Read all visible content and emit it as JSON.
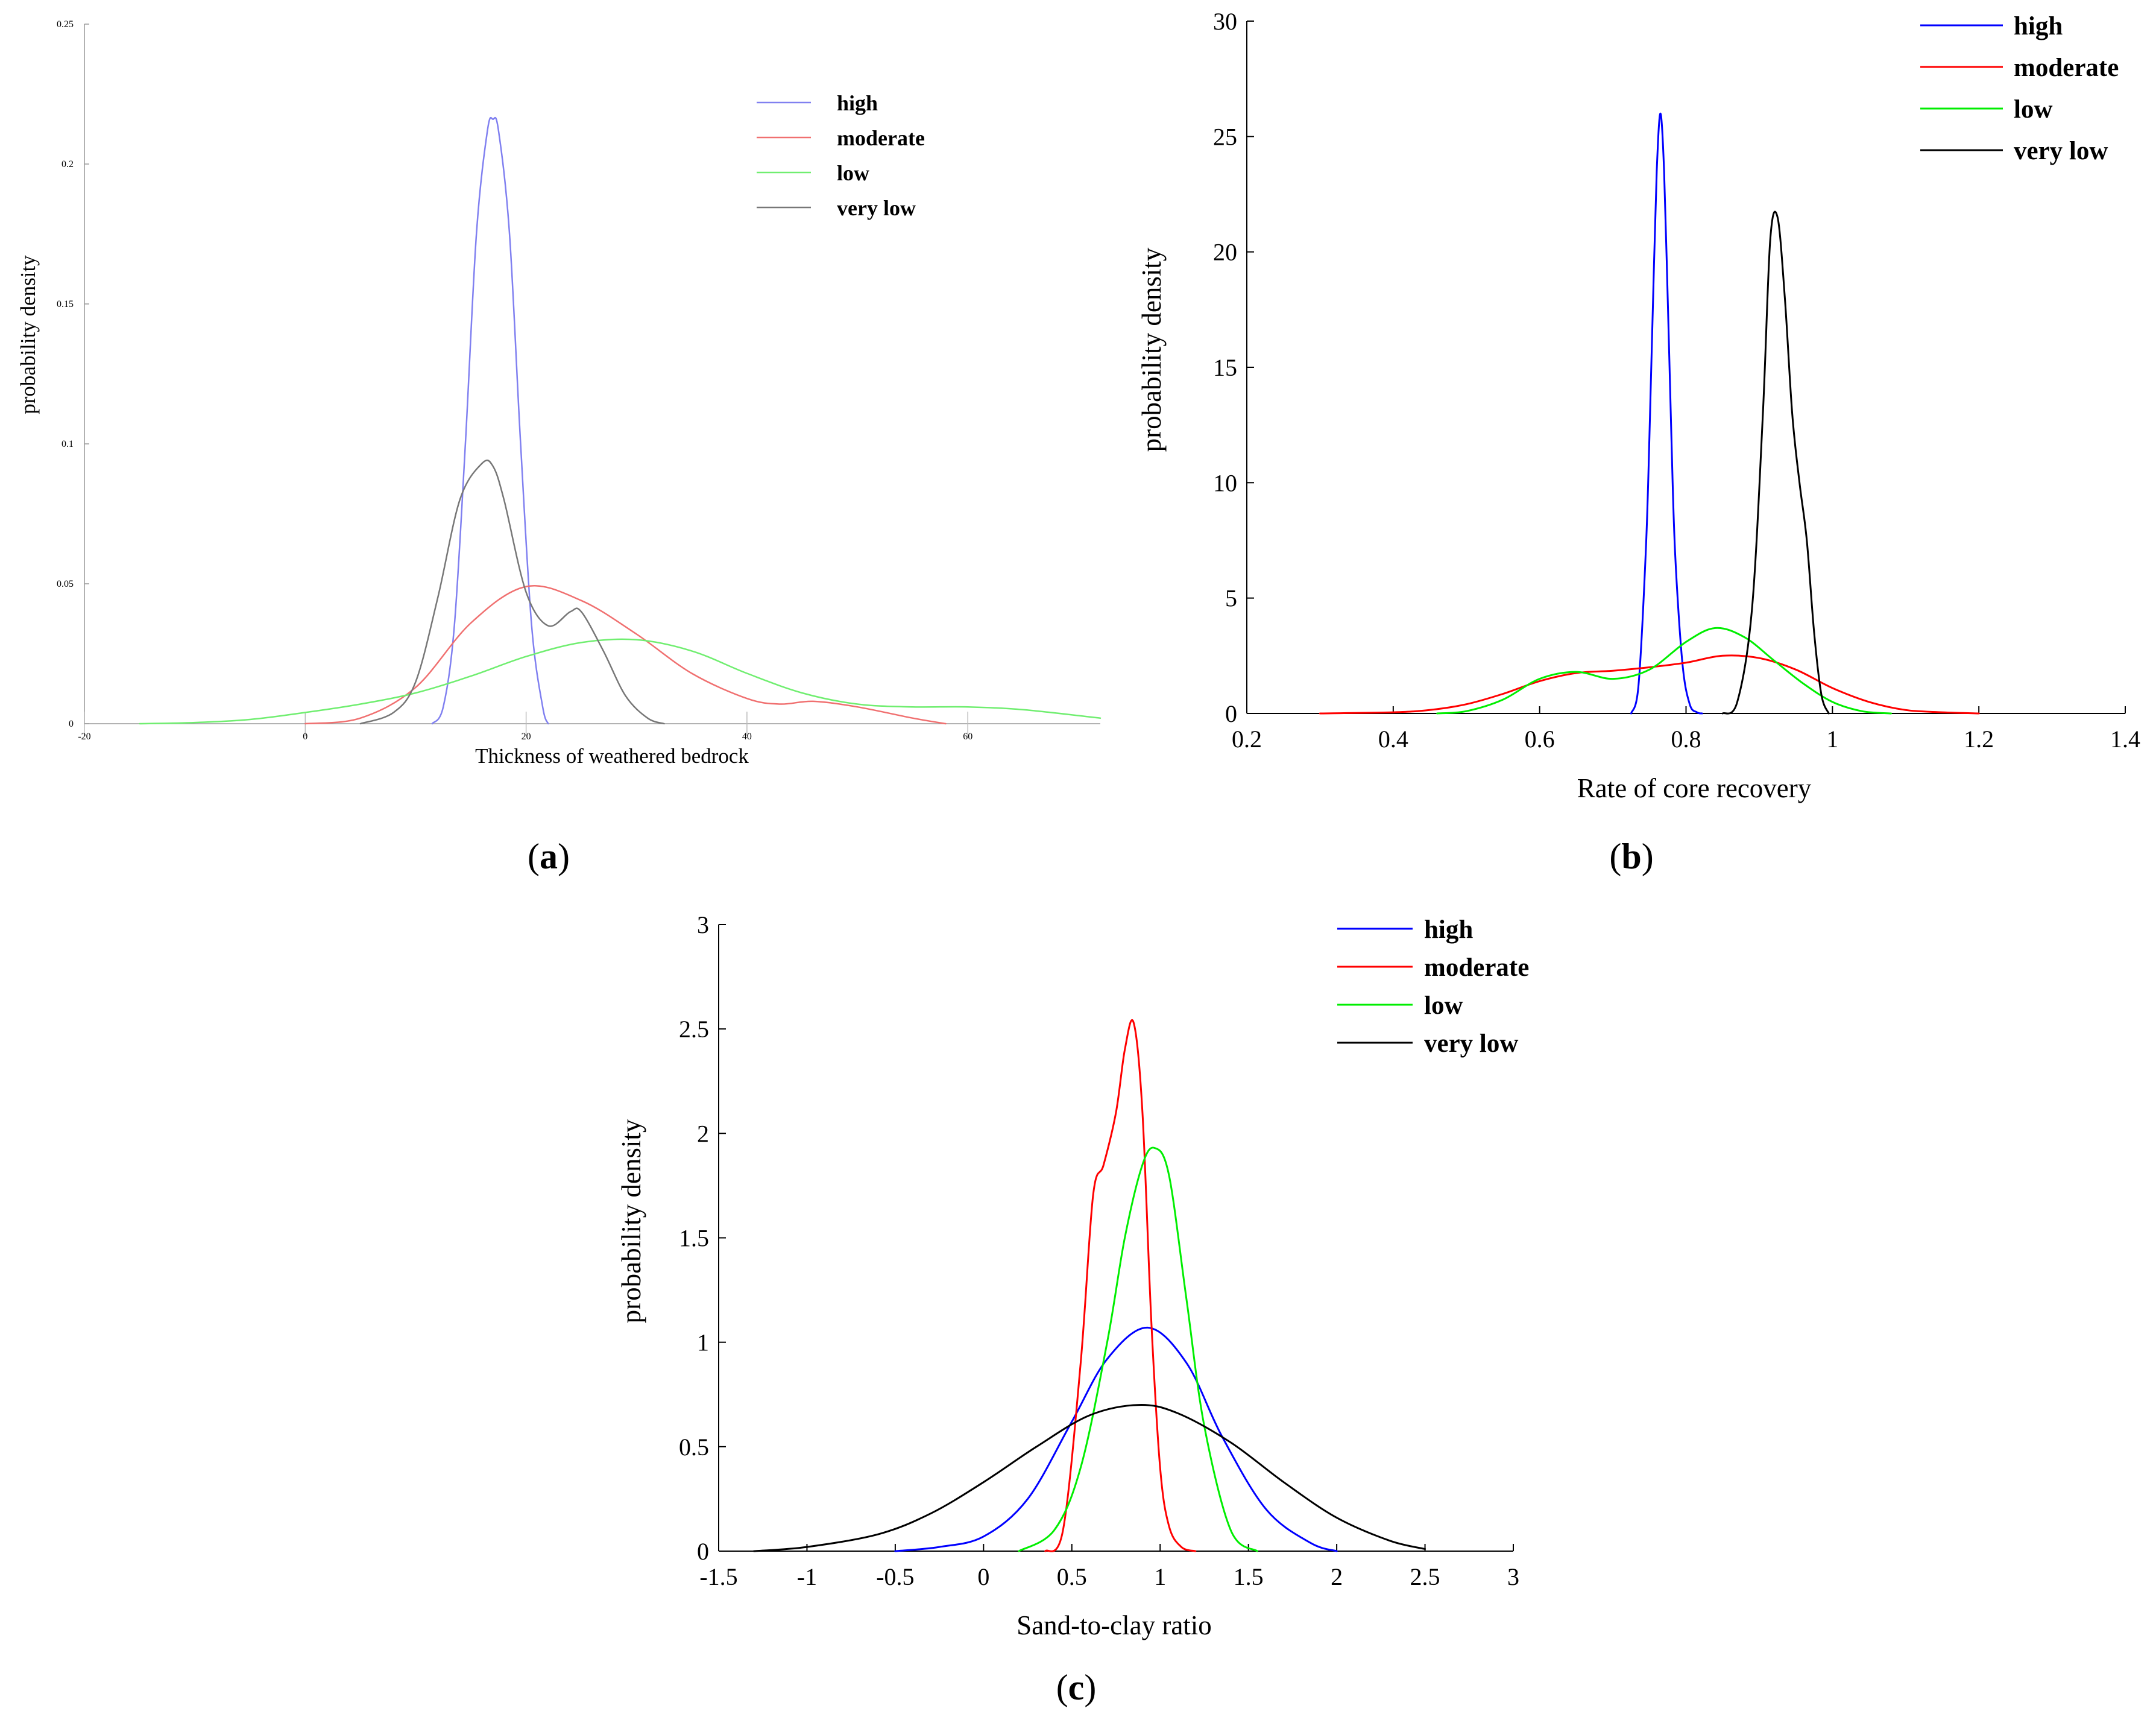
{
  "panels": [
    {
      "id": "a",
      "label_letter": "a",
      "chart_data": {
        "type": "line",
        "title": "",
        "xlabel": "Thickness of weathered bedrock",
        "ylabel": "probability density",
        "xlim": [
          -20,
          72
        ],
        "ylim": [
          0,
          0.25
        ],
        "xticks": [
          -20,
          0,
          20,
          40,
          60
        ],
        "xtick_labels": [
          "-20",
          "0",
          "20",
          "40",
          "60"
        ],
        "yticks": [
          0,
          0.05,
          0.1,
          0.15,
          0.2,
          0.25
        ],
        "ytick_labels": [
          "0",
          "0.05",
          "0.1",
          "0.15",
          "0.2",
          "0.25"
        ],
        "legend_position": "top-right",
        "series": [
          {
            "name": "high",
            "color": "#8080f0",
            "x": [
              11.5,
              12.5,
              13.5,
              14.5,
              15.5,
              16.5,
              17.0,
              17.5,
              18.5,
              19.5,
              20.5,
              21.5,
              22.0
            ],
            "y": [
              0,
              0.006,
              0.035,
              0.1,
              0.175,
              0.212,
              0.216,
              0.212,
              0.175,
              0.1,
              0.035,
              0.006,
              0
            ]
          },
          {
            "name": "moderate",
            "color": "#f07070",
            "x": [
              0,
              5,
              10,
              15,
              20,
              25,
              30,
              35,
              40,
              43,
              46,
              50,
              55,
              58
            ],
            "y": [
              0,
              0.002,
              0.013,
              0.036,
              0.049,
              0.044,
              0.032,
              0.018,
              0.009,
              0.007,
              0.008,
              0.006,
              0.002,
              0
            ]
          },
          {
            "name": "low",
            "color": "#70ee70",
            "x": [
              -15,
              -10,
              -5,
              0,
              5,
              10,
              15,
              20,
              25,
              30,
              35,
              40,
              45,
              50,
              55,
              60,
              65,
              72
            ],
            "y": [
              0,
              0.0004,
              0.0015,
              0.004,
              0.007,
              0.011,
              0.017,
              0.024,
              0.029,
              0.03,
              0.026,
              0.018,
              0.011,
              0.007,
              0.006,
              0.006,
              0.005,
              0.002
            ]
          },
          {
            "name": "very low",
            "color": "#777777",
            "x": [
              5,
              8,
              10,
              12,
              14,
              16,
              17,
              18,
              20,
              22,
              24,
              25,
              27,
              29,
              31,
              32.5
            ],
            "y": [
              0,
              0.004,
              0.015,
              0.045,
              0.08,
              0.093,
              0.092,
              0.08,
              0.047,
              0.035,
              0.04,
              0.04,
              0.026,
              0.01,
              0.002,
              0
            ]
          }
        ]
      }
    },
    {
      "id": "b",
      "label_letter": "b",
      "chart_data": {
        "type": "line",
        "title": "",
        "xlabel": "Rate of core recovery",
        "ylabel": "probability density",
        "xlim": [
          0.2,
          1.4
        ],
        "ylim": [
          0,
          30
        ],
        "xticks": [
          0.2,
          0.4,
          0.6,
          0.8,
          1.0,
          1.2,
          1.4
        ],
        "xtick_labels": [
          "0.2",
          "0.4",
          "0.6",
          "0.8",
          "1",
          "1.2",
          "1.4"
        ],
        "yticks": [
          0,
          5,
          10,
          15,
          20,
          25,
          30
        ],
        "ytick_labels": [
          "0",
          "5",
          "10",
          "15",
          "20",
          "25",
          "30"
        ],
        "legend_position": "top-right",
        "series": [
          {
            "name": "high",
            "color": "#0000ff",
            "x": [
              0.725,
              0.735,
              0.745,
              0.75,
              0.755,
              0.76,
              0.765,
              0.77,
              0.775,
              0.78,
              0.785,
              0.795,
              0.805,
              0.815,
              0.822
            ],
            "y": [
              0,
              1.2,
              7,
              12,
              18,
              23.5,
              26,
              23.5,
              18,
              12,
              7,
              2.2,
              0.4,
              0.05,
              0
            ]
          },
          {
            "name": "moderate",
            "color": "#ff0000",
            "x": [
              0.3,
              0.4,
              0.45,
              0.5,
              0.55,
              0.6,
              0.65,
              0.7,
              0.75,
              0.8,
              0.85,
              0.9,
              0.95,
              1.0,
              1.05,
              1.1,
              1.15,
              1.2
            ],
            "y": [
              0,
              0.05,
              0.15,
              0.4,
              0.85,
              1.4,
              1.75,
              1.85,
              2.0,
              2.2,
              2.5,
              2.4,
              1.9,
              1.1,
              0.5,
              0.15,
              0.05,
              0
            ]
          },
          {
            "name": "low",
            "color": "#00ee00",
            "x": [
              0.46,
              0.5,
              0.55,
              0.6,
              0.65,
              0.7,
              0.75,
              0.8,
              0.84,
              0.88,
              0.92,
              0.96,
              1.0,
              1.04,
              1.08
            ],
            "y": [
              0,
              0.1,
              0.6,
              1.5,
              1.8,
              1.5,
              1.9,
              3.1,
              3.7,
              3.3,
              2.3,
              1.3,
              0.5,
              0.1,
              0
            ]
          },
          {
            "name": "very low",
            "color": "#000000",
            "x": [
              0.85,
              0.87,
              0.89,
              0.905,
              0.915,
              0.925,
              0.935,
              0.945,
              0.955,
              0.965,
              0.975,
              0.985,
              0.995
            ],
            "y": [
              0,
              0.5,
              4.5,
              13,
              20.5,
              21.5,
              18,
              13,
              10,
              7.5,
              3.5,
              0.8,
              0
            ]
          }
        ]
      }
    },
    {
      "id": "c",
      "label_letter": "c",
      "chart_data": {
        "type": "line",
        "title": "",
        "xlabel": "Sand-to-clay ratio",
        "ylabel": "probability density",
        "xlim": [
          -1.5,
          3
        ],
        "ylim": [
          0,
          3
        ],
        "xticks": [
          -1.5,
          -1,
          -0.5,
          0,
          0.5,
          1,
          1.5,
          2,
          2.5,
          3
        ],
        "xtick_labels": [
          "-1.5",
          "-1",
          "-0.5",
          "0",
          "0.5",
          "1",
          "1.5",
          "2",
          "2.5",
          "3"
        ],
        "yticks": [
          0,
          0.5,
          1,
          1.5,
          2,
          2.5,
          3
        ],
        "ytick_labels": [
          "0",
          "0.5",
          "1",
          "1.5",
          "2",
          "2.5",
          "3"
        ],
        "legend_position": "top-right",
        "series": [
          {
            "name": "high",
            "color": "#0000ff",
            "x": [
              -0.5,
              -0.25,
              0,
              0.25,
              0.5,
              0.7,
              0.93,
              1.15,
              1.35,
              1.6,
              1.85,
              2.0
            ],
            "y": [
              0,
              0.02,
              0.07,
              0.25,
              0.62,
              0.92,
              1.07,
              0.9,
              0.55,
              0.2,
              0.04,
              0
            ]
          },
          {
            "name": "moderate",
            "color": "#ff0000",
            "x": [
              0.35,
              0.45,
              0.55,
              0.62,
              0.68,
              0.75,
              0.8,
              0.85,
              0.9,
              0.95,
              1.0,
              1.05,
              1.12,
              1.2
            ],
            "y": [
              0,
              0.1,
              0.9,
              1.7,
              1.85,
              2.1,
              2.4,
              2.53,
              2.1,
              1.1,
              0.4,
              0.12,
              0.02,
              0
            ]
          },
          {
            "name": "low",
            "color": "#00ee00",
            "x": [
              0.2,
              0.4,
              0.55,
              0.7,
              0.8,
              0.9,
              0.97,
              1.05,
              1.15,
              1.25,
              1.4,
              1.55
            ],
            "y": [
              0,
              0.1,
              0.4,
              1.0,
              1.5,
              1.85,
              1.93,
              1.8,
              1.2,
              0.6,
              0.1,
              0
            ]
          },
          {
            "name": "very low",
            "color": "#000000",
            "x": [
              -1.3,
              -1.0,
              -0.6,
              -0.3,
              0,
              0.3,
              0.6,
              0.88,
              1.1,
              1.4,
              1.7,
              2.0,
              2.3,
              2.5
            ],
            "y": [
              0,
              0.02,
              0.08,
              0.18,
              0.33,
              0.5,
              0.65,
              0.7,
              0.66,
              0.52,
              0.33,
              0.16,
              0.05,
              0.01
            ]
          }
        ]
      }
    }
  ]
}
